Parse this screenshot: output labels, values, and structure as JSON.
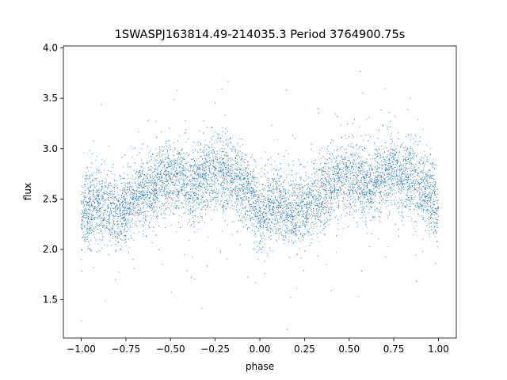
{
  "chart_data": {
    "type": "scatter",
    "title": "1SWASPJ163814.49-214035.3 Period 3764900.75s",
    "xlabel": "phase",
    "ylabel": "flux",
    "xlim": [
      -1.1,
      1.1
    ],
    "ylim": [
      1.12,
      4.02
    ],
    "xticks": [
      {
        "value": -1.0,
        "label": "−1.00"
      },
      {
        "value": -0.75,
        "label": "−0.75"
      },
      {
        "value": -0.5,
        "label": "−0.50"
      },
      {
        "value": -0.25,
        "label": "−0.25"
      },
      {
        "value": 0.0,
        "label": "0.00"
      },
      {
        "value": 0.25,
        "label": "0.25"
      },
      {
        "value": 0.5,
        "label": "0.50"
      },
      {
        "value": 0.75,
        "label": "0.75"
      },
      {
        "value": 1.0,
        "label": "1.00"
      }
    ],
    "yticks": [
      {
        "value": 1.5,
        "label": "1.5"
      },
      {
        "value": 2.0,
        "label": "2.0"
      },
      {
        "value": 2.5,
        "label": "2.5"
      },
      {
        "value": 3.0,
        "label": "3.0"
      },
      {
        "value": 3.5,
        "label": "3.5"
      },
      {
        "value": 4.0,
        "label": "4.0"
      }
    ],
    "grid": false,
    "marker_color": "#1f77b4",
    "series": [
      {
        "x_range": [
          -1.0,
          1.0
        ],
        "mean_flux_profile": [
          {
            "phase": 0.0,
            "flux": 2.35
          },
          {
            "phase": 0.05,
            "flux": 2.4
          },
          {
            "phase": 0.1,
            "flux": 2.45
          },
          {
            "phase": 0.17,
            "flux": 2.4
          },
          {
            "phase": 0.22,
            "flux": 2.38
          },
          {
            "phase": 0.27,
            "flux": 2.45
          },
          {
            "phase": 0.33,
            "flux": 2.55
          },
          {
            "phase": 0.4,
            "flux": 2.62
          },
          {
            "phase": 0.47,
            "flux": 2.72
          },
          {
            "phase": 0.55,
            "flux": 2.7
          },
          {
            "phase": 0.62,
            "flux": 2.62
          },
          {
            "phase": 0.7,
            "flux": 2.72
          },
          {
            "phase": 0.75,
            "flux": 2.78
          },
          {
            "phase": 0.82,
            "flux": 2.72
          },
          {
            "phase": 0.9,
            "flux": 2.62
          },
          {
            "phase": 0.96,
            "flux": 2.52
          },
          {
            "phase": 1.0,
            "flux": 2.38
          }
        ],
        "scatter_sd": 0.18,
        "n_points": 9000
      }
    ]
  }
}
